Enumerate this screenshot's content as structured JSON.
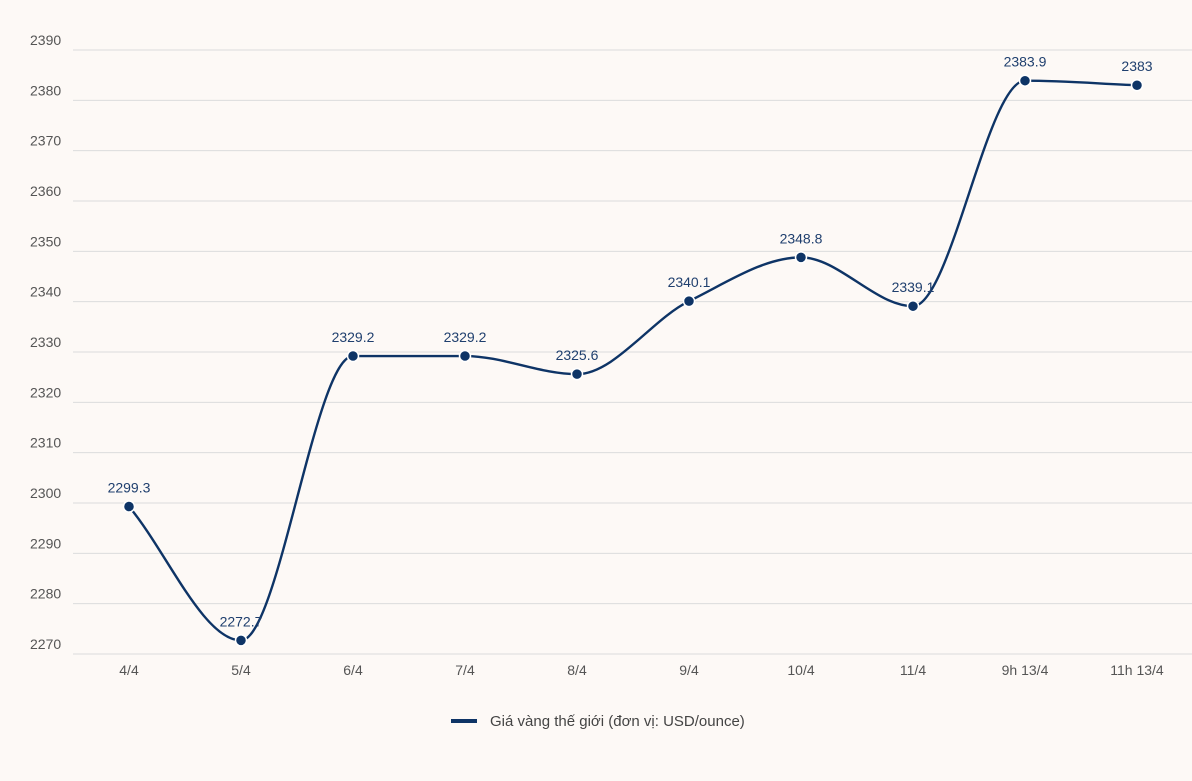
{
  "chart_data": {
    "type": "line",
    "categories": [
      "4/4",
      "5/4",
      "6/4",
      "7/4",
      "8/4",
      "9/4",
      "10/4",
      "11/4",
      "9h 13/4",
      "11h 13/4"
    ],
    "series": [
      {
        "name": "Giá vàng thế giới (đơn vị: USD/ounce)",
        "values": [
          2299.3,
          2272.7,
          2329.2,
          2329.2,
          2325.6,
          2340.1,
          2348.8,
          2339.1,
          2383.9,
          2383
        ],
        "labels": [
          "2299.3",
          "2272.7",
          "2329.2",
          "2329.2",
          "2325.6",
          "2340.1",
          "2348.8",
          "2339.1",
          "2383.9",
          "2383"
        ]
      }
    ],
    "yticks": [
      2270,
      2280,
      2290,
      2300,
      2310,
      2320,
      2330,
      2340,
      2350,
      2360,
      2370,
      2380,
      2390
    ],
    "ylim": [
      2270,
      2390
    ],
    "grid": true,
    "legend_position": "bottom-center",
    "title": "",
    "xlabel": "",
    "ylabel": ""
  },
  "colors": {
    "background": "#fdf9f6",
    "line": "#0e3466",
    "grid": "#dcdcdc",
    "tick_text": "#555555",
    "label_text": "#1f3f6e"
  }
}
